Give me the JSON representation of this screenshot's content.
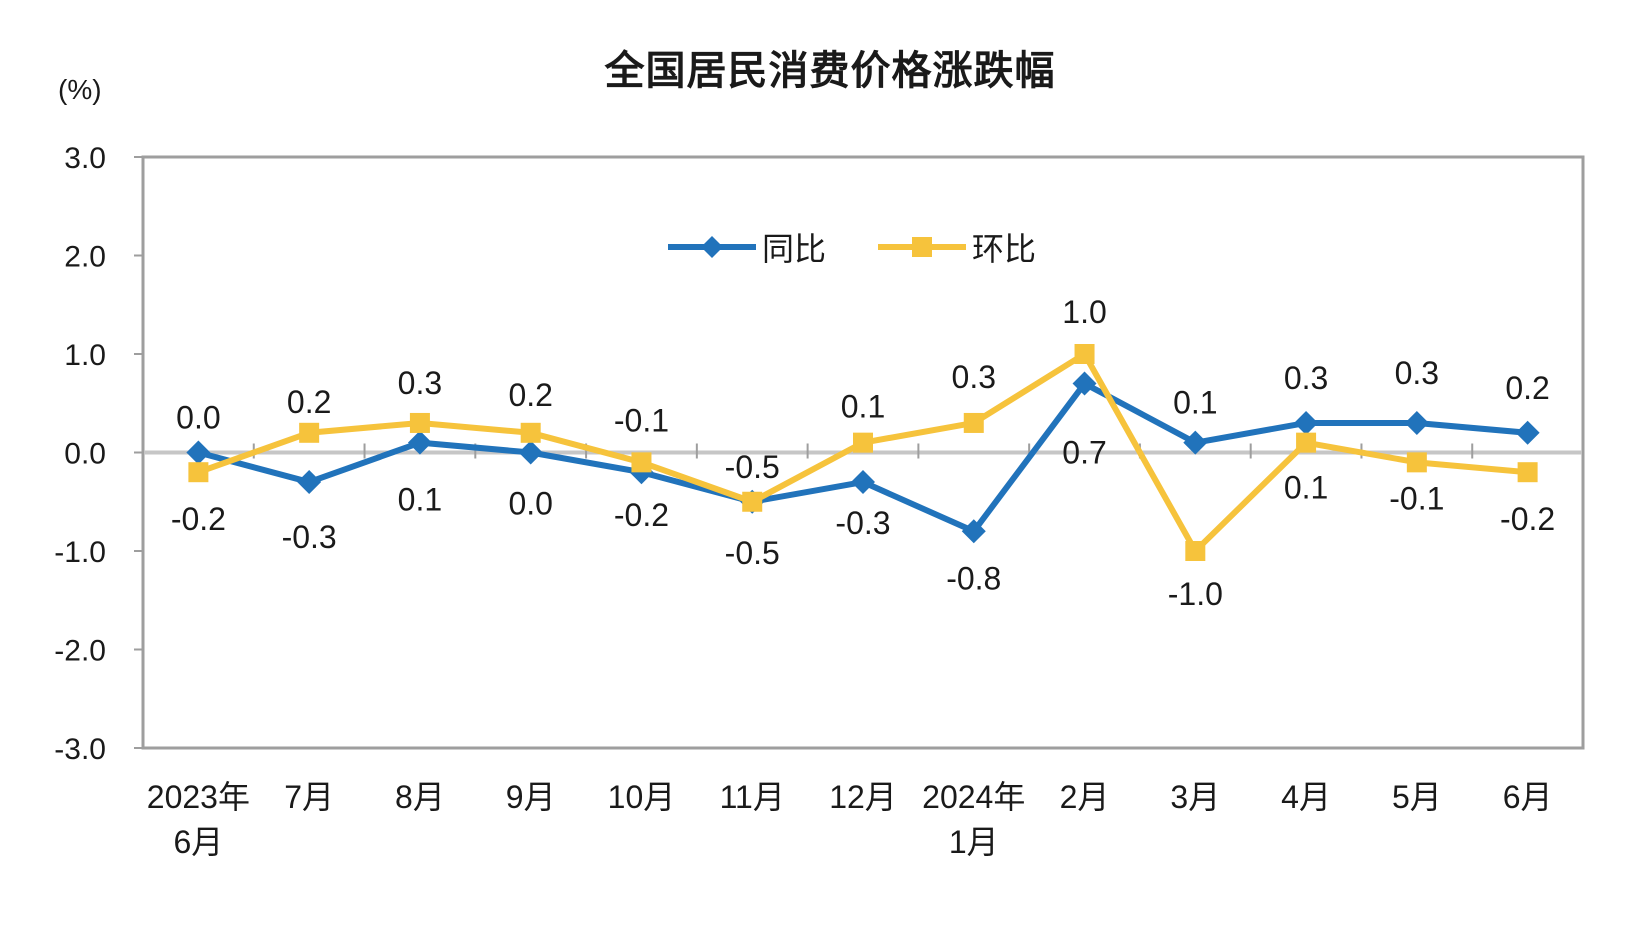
{
  "chart_data": {
    "type": "line",
    "title": "全国居民消费价格涨跌幅",
    "xlabel": "",
    "ylabel": "(%)",
    "ylim": [
      -3.0,
      3.0
    ],
    "yticks": [
      "3.0",
      "2.0",
      "1.0",
      "0.0",
      "-1.0",
      "-2.0",
      "-3.0"
    ],
    "grid": false,
    "legend_position": "inside-top-center",
    "axis_color": "#9e9e9e",
    "zero_line_color": "#c6c6c6",
    "text_color": "#1a1a1a",
    "categories": [
      [
        "2023年",
        "6月"
      ],
      [
        "7月"
      ],
      [
        "8月"
      ],
      [
        "9月"
      ],
      [
        "10月"
      ],
      [
        "11月"
      ],
      [
        "12月"
      ],
      [
        "2024年",
        "1月"
      ],
      [
        "2月"
      ],
      [
        "3月"
      ],
      [
        "4月"
      ],
      [
        "5月"
      ],
      [
        "6月"
      ]
    ],
    "series": [
      {
        "name": "同比",
        "marker": "diamond",
        "color": "#2173BB",
        "values": [
          0.0,
          -0.3,
          0.1,
          0.0,
          -0.2,
          -0.5,
          -0.3,
          -0.8,
          0.7,
          0.1,
          0.3,
          0.3,
          0.2
        ],
        "labels": [
          "0.0",
          "-0.3",
          "0.1",
          "0.0",
          "-0.2",
          "-0.5",
          "-0.3",
          "-0.8",
          "0.7",
          "0.1",
          "0.3",
          "0.3",
          "0.2"
        ],
        "label_pos": [
          "above",
          "below",
          "below",
          "below",
          "below",
          "below",
          "below",
          "below",
          "below",
          "above",
          "above",
          "above",
          "above"
        ],
        "label_dy": [
          5,
          8,
          10,
          4,
          -4,
          4,
          -6,
          0,
          22,
          0,
          -5,
          -10,
          -5
        ]
      },
      {
        "name": "环比",
        "marker": "square",
        "color": "#F6C33C",
        "values": [
          -0.2,
          0.2,
          0.3,
          0.2,
          -0.1,
          -0.5,
          0.1,
          0.3,
          1.0,
          -1.0,
          0.1,
          -0.1,
          -0.2
        ],
        "labels": [
          "-0.2",
          "0.2",
          "0.3",
          "0.2",
          "-0.1",
          "-0.5",
          "0.1",
          "0.3",
          "1.0",
          "-1.0",
          "0.1",
          "-0.1",
          "-0.2"
        ],
        "label_pos": [
          "below",
          "above",
          "above",
          "above",
          "above",
          "above",
          "above",
          "above",
          "above",
          "below",
          "below",
          "below",
          "below"
        ],
        "label_dy": [
          0,
          9,
          0,
          2,
          -2,
          5,
          4,
          -6,
          -2,
          -4,
          -2,
          -11,
          0
        ]
      }
    ]
  }
}
